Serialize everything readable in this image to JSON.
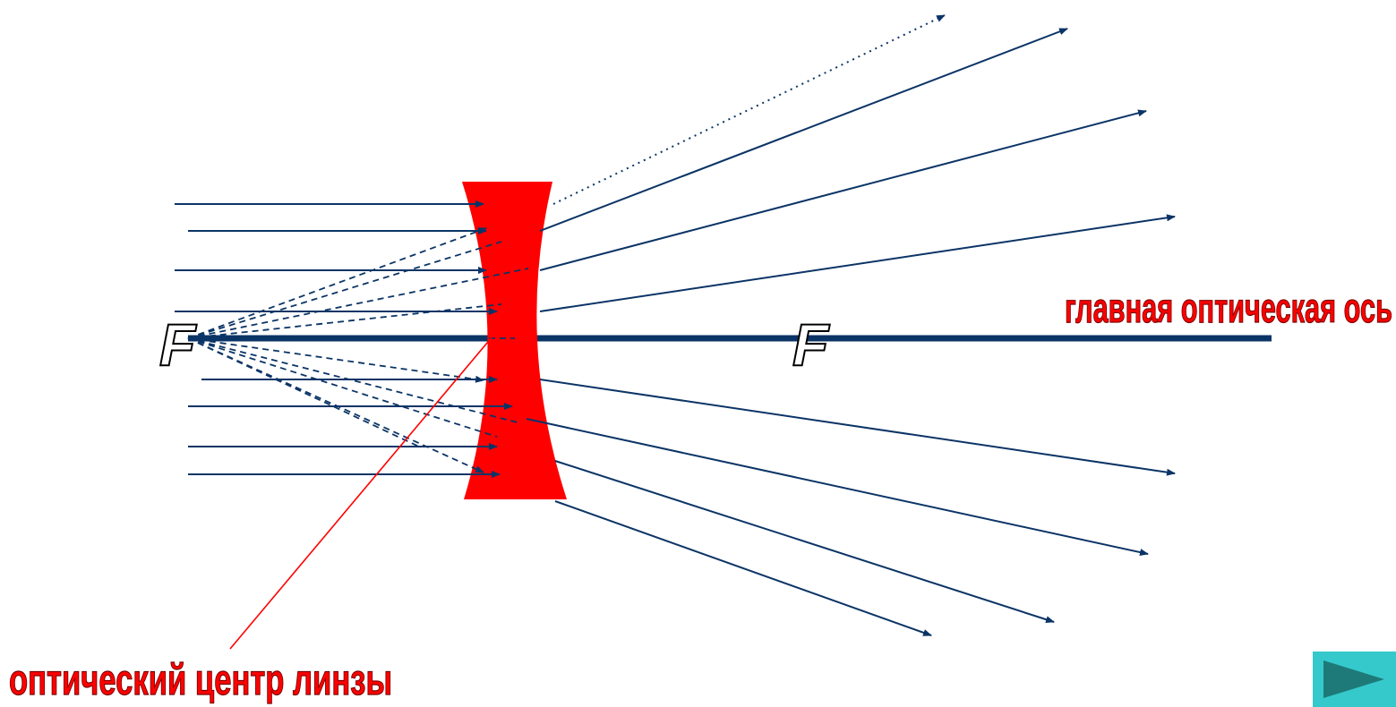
{
  "labels": {
    "focus_left": "F",
    "focus_right": "F",
    "principal_axis": "главная оптическая ось",
    "optical_center": "оптический центр линзы"
  },
  "colors": {
    "lens": "#ff0000",
    "ray": "#0b3466",
    "axis": "#0b3466",
    "label_red": "#ff0000",
    "button_bg": "#35c9cc",
    "button_arrow": "#1e7a78"
  },
  "icons": {
    "next": "play-triangle-icon"
  }
}
